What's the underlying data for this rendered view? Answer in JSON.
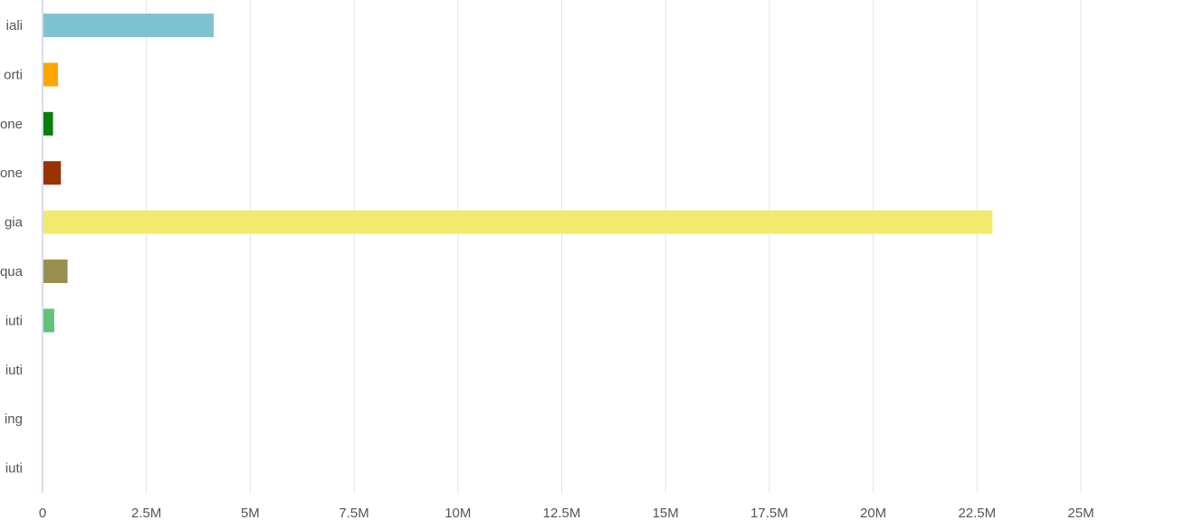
{
  "chart_data": {
    "type": "bar",
    "orientation": "horizontal",
    "categories": [
      "iali",
      "orti",
      "one",
      "one",
      "gia",
      "qua",
      "iuti",
      "iuti",
      "ing",
      "iuti"
    ],
    "values": [
      4100000,
      350000,
      230000,
      420000,
      22850000,
      580000,
      260000,
      0,
      0,
      0
    ],
    "colors": [
      "#7fc3d0",
      "#ffa500",
      "#0a7d0a",
      "#993300",
      "#f2e96f",
      "#9a8f4e",
      "#63c27a",
      "#cccccc",
      "#cccccc",
      "#cccccc"
    ],
    "xlim": [
      0,
      25000000
    ],
    "x_ticks": [
      0,
      2500000,
      5000000,
      7500000,
      10000000,
      12500000,
      15000000,
      17500000,
      20000000,
      22500000,
      25000000
    ],
    "x_tick_labels": [
      "0",
      "2.5M",
      "5M",
      "7.5M",
      "10M",
      "12.5M",
      "15M",
      "17.5M",
      "20M",
      "22.5M",
      "25M"
    ],
    "grid": true,
    "legend": false
  }
}
